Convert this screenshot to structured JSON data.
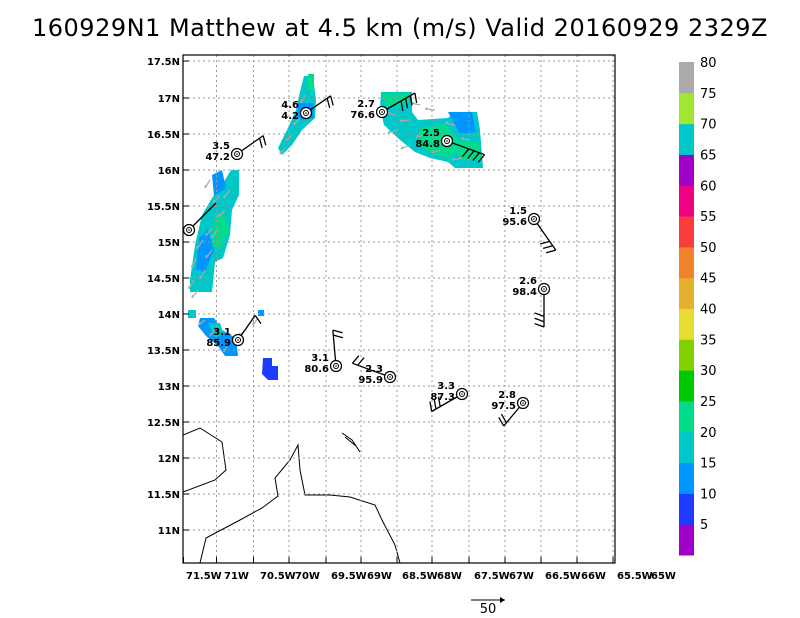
{
  "title": "160929N1 Matthew at 4.5 km (m/s) Valid 20160929 2329Z",
  "lon_ticks": [
    "71.5W",
    "71W",
    "70.5W",
    "70W",
    "69.5W",
    "69W",
    "68.5W",
    "68W",
    "67.5W",
    "67W",
    "66.5W",
    "66W",
    "65.5W",
    "65W"
  ],
  "lat_ticks": [
    "17.5N",
    "17N",
    "16.5N",
    "16N",
    "15.5N",
    "15N",
    "14.5N",
    "14N",
    "13.5N",
    "13N",
    "12.5N",
    "12N",
    "11.5N",
    "11N"
  ],
  "colorbar": {
    "labels": [
      "5",
      "10",
      "15",
      "20",
      "25",
      "30",
      "35",
      "40",
      "45",
      "50",
      "55",
      "60",
      "65",
      "70",
      "75",
      "80"
    ],
    "colors": [
      "#a000c8",
      "#1e3cff",
      "#0096ff",
      "#00c8c8",
      "#00dc8c",
      "#00c800",
      "#82d200",
      "#e6dc32",
      "#e6af2d",
      "#f08228",
      "#fa3c3c",
      "#f00082",
      "#a000c8",
      "#00c8c8",
      "#a0e632",
      "#aaaaaa"
    ]
  },
  "scale_arrow_label": "50",
  "obs_points": [
    {
      "top": "4.6",
      "bottom": "4.2"
    },
    {
      "top": "2.7",
      "bottom": "76.6"
    },
    {
      "top": "3.5",
      "bottom": "47.2"
    },
    {
      "top": "2.5",
      "bottom": "84.8"
    },
    {
      "top": "1.5",
      "bottom": "95.6"
    },
    {
      "top": "2.6",
      "bottom": "98.4"
    },
    {
      "top": "3.1",
      "bottom": "85.9"
    },
    {
      "top": "3.1",
      "bottom": "80.6"
    },
    {
      "top": "2.3",
      "bottom": "95.9"
    },
    {
      "top": "3.3",
      "bottom": "87.3"
    },
    {
      "top": "2.8",
      "bottom": "97.5"
    },
    {
      "top": "",
      "bottom": ""
    }
  ]
}
